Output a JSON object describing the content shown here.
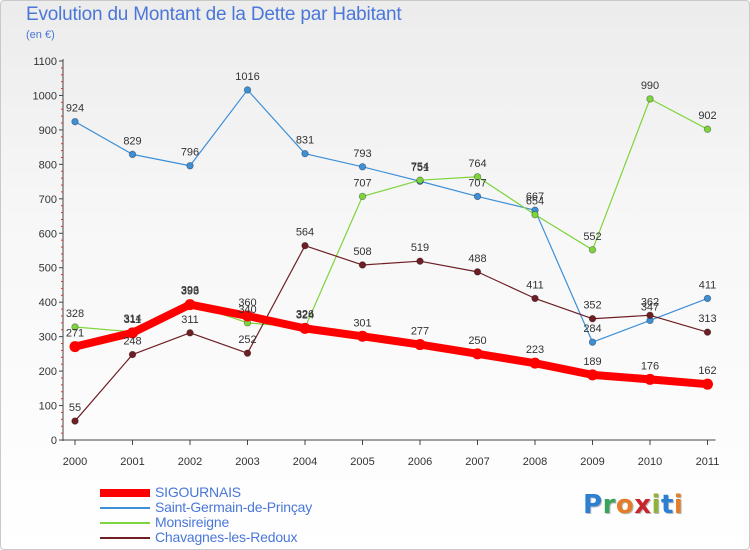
{
  "title": "Evolution du Montant de la Dette par Habitant",
  "unit": "(en €)",
  "logo": {
    "text": "Proxiti",
    "letter_colors": [
      "#2c7fd1",
      "#3aa35c",
      "#e37d2a",
      "#c8262b",
      "#8fb23a",
      "#2c7fd1",
      "#e37d2a"
    ]
  },
  "chart_data": {
    "type": "line",
    "x": [
      "2000",
      "2001",
      "2002",
      "2003",
      "2004",
      "2005",
      "2006",
      "2007",
      "2008",
      "2009",
      "2010",
      "2011"
    ],
    "ylim": [
      0,
      1100
    ],
    "yticks": [
      "0",
      "100",
      "200",
      "300",
      "400",
      "500",
      "600",
      "700",
      "800",
      "900",
      "1000",
      "1100"
    ],
    "grid": false,
    "legend_position": "bottom-left",
    "series": [
      {
        "name": "SIGOURNAIS",
        "color": "#ff0000",
        "emphasis": "thick",
        "values": [
          271,
          311,
          393,
          360,
          324,
          301,
          277,
          250,
          223,
          189,
          176,
          162
        ]
      },
      {
        "name": "Saint-Germain-de-Prinçay",
        "color": "#3d8fd6",
        "values": [
          924,
          829,
          796,
          1016,
          831,
          793,
          751,
          707,
          667,
          284,
          347,
          411
        ]
      },
      {
        "name": "Monsireigne",
        "color": "#7ed43c",
        "values": [
          328,
          314,
          396,
          340,
          326,
          707,
          754,
          764,
          654,
          552,
          990,
          902
        ]
      },
      {
        "name": "Chavagnes-les-Redoux",
        "color": "#6e1f24",
        "values": [
          55,
          248,
          311,
          252,
          564,
          508,
          519,
          488,
          411,
          352,
          362,
          313
        ]
      }
    ]
  }
}
